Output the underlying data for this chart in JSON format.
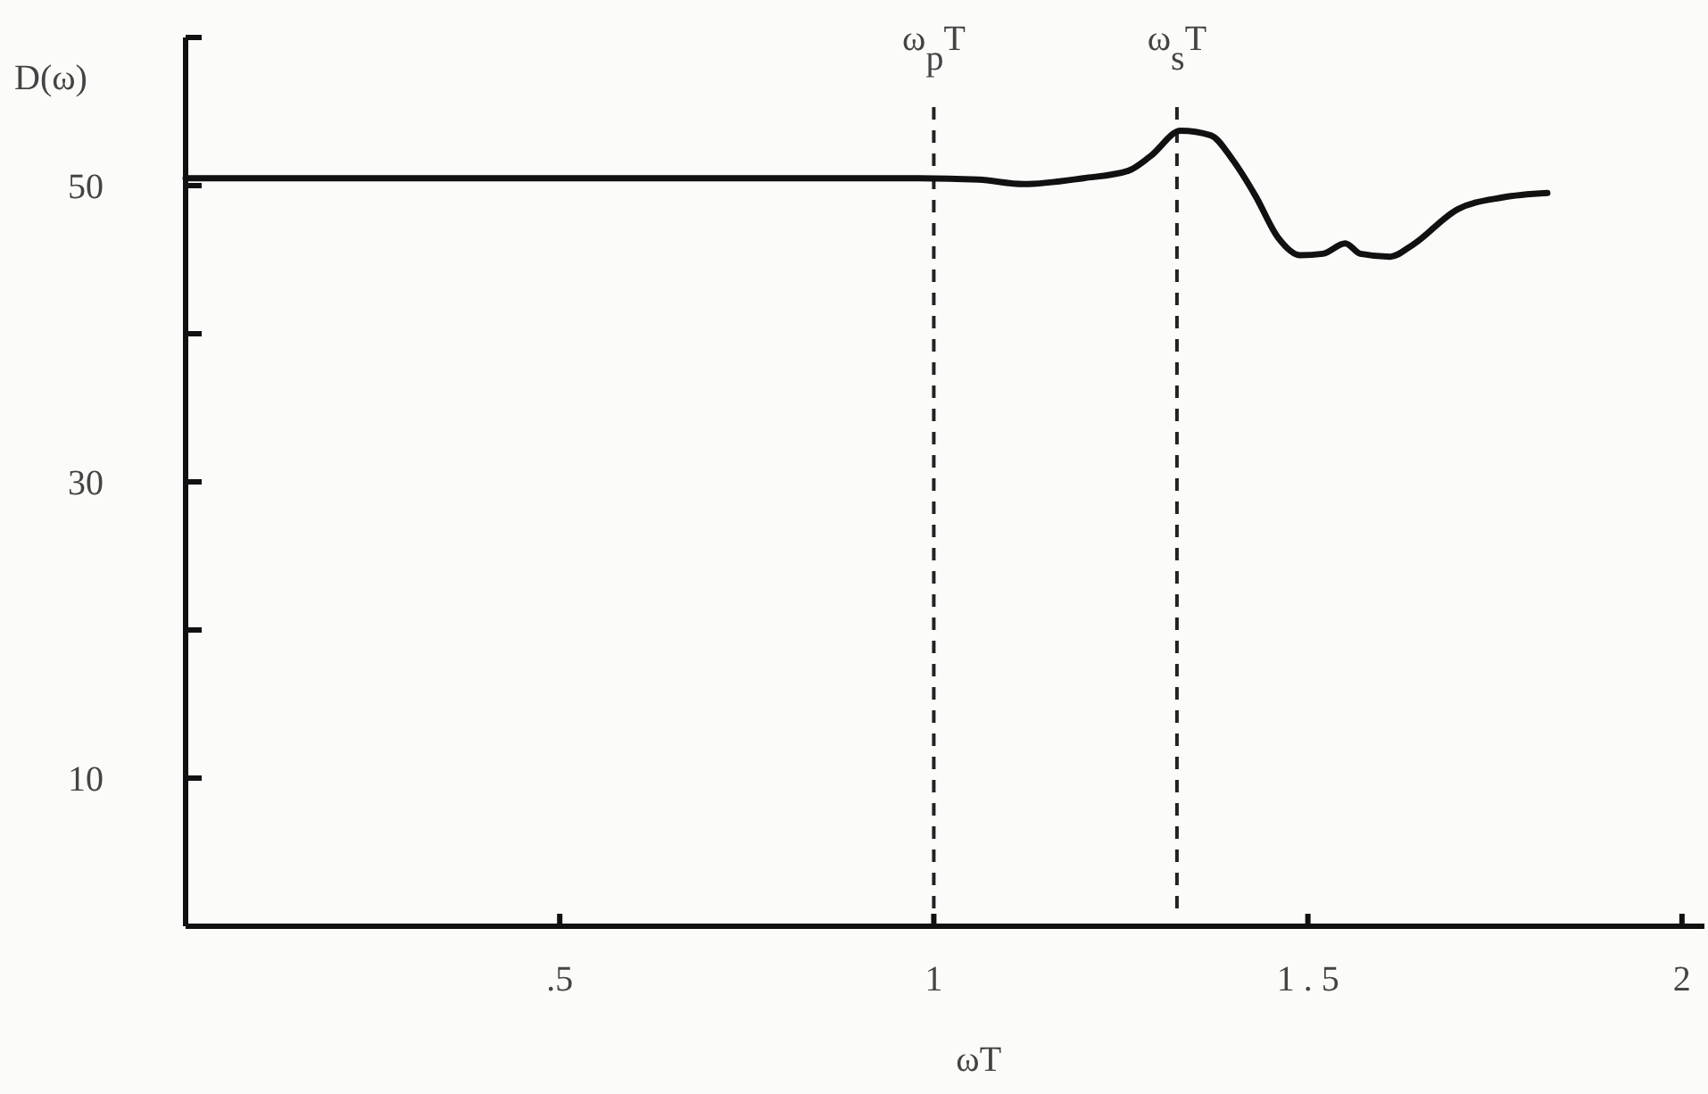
{
  "chart_data": {
    "type": "line",
    "xlabel": "ωT",
    "ylabel": "D(ω)",
    "x": [
      0,
      0.5,
      0.8,
      0.98,
      1.06,
      1.12,
      1.2,
      1.26,
      1.29,
      1.33,
      1.37,
      1.4,
      1.43,
      1.46,
      1.49,
      1.52,
      1.55,
      1.57,
      1.61,
      1.64,
      1.7,
      1.76,
      1.82
    ],
    "series": [
      {
        "color": "#111111",
        "values": [
          50.5,
          50.5,
          50.5,
          50.5,
          50.4,
          50.1,
          50.5,
          51.0,
          52.0,
          53.7,
          53.4,
          51.7,
          49.3,
          46.5,
          45.3,
          45.4,
          46.1,
          45.4,
          45.2,
          46.0,
          48.4,
          49.2,
          49.5
        ]
      }
    ],
    "xlim": [
      0,
      2.03
    ],
    "ylim": [
      0,
      60
    ],
    "xticks": [
      {
        "value": 0.5,
        "label": ".5"
      },
      1,
      {
        "value": 1.5,
        "label": "1 . 5"
      },
      2
    ],
    "yticks": [
      10,
      {
        "value": 20,
        "label": null
      },
      30,
      {
        "value": 40,
        "label": null
      },
      50,
      {
        "value": 60,
        "label": null
      }
    ],
    "ref_lines": [
      {
        "axis": "x",
        "value": 1,
        "label": "ω$_{p}$T",
        "line_style": "dashed"
      },
      {
        "axis": "x",
        "value": 1.325,
        "label": "ω$_{s}$T",
        "line_style": "dashed"
      }
    ],
    "grid": false,
    "marker": "none",
    "line_style": "solid"
  }
}
